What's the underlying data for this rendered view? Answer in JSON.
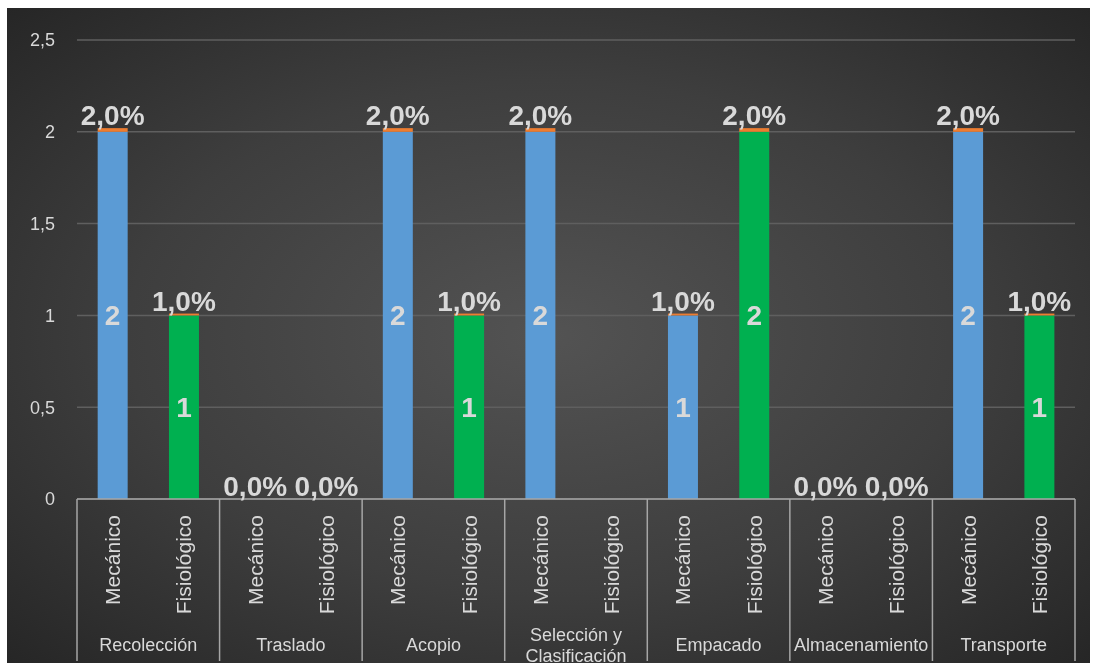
{
  "chart_data": {
    "type": "bar",
    "stacked": true,
    "categories": [
      "Mecánico",
      "Fisiológico",
      "Mecánico",
      "Fisiológico",
      "Mecánico",
      "Fisiológico",
      "Mecánico",
      "Fisiológico",
      "Mecánico",
      "Fisiológico",
      "Mecánico",
      "Fisiológico",
      "Mecánico",
      "Fisiológico"
    ],
    "series": [
      {
        "colors": [
          "#5b9bd5",
          "#00b050",
          "#5b9bd5",
          "#00b050",
          "#5b9bd5",
          "#00b050",
          "#5b9bd5",
          "#00b050",
          "#5b9bd5",
          "#00b050",
          "#5b9bd5",
          "#00b050",
          "#5b9bd5",
          "#00b050"
        ],
        "values": [
          2,
          1,
          null,
          null,
          2,
          1,
          2,
          null,
          1,
          2,
          null,
          null,
          2,
          1
        ],
        "value_labels": [
          "2",
          "1",
          null,
          null,
          "2",
          "1",
          "2",
          null,
          "1",
          "2",
          null,
          null,
          "2",
          "1"
        ]
      },
      {
        "color": "#ed7d31",
        "values": [
          0.02,
          0.01,
          0,
          0,
          0.02,
          0.01,
          0.02,
          null,
          0.01,
          0.02,
          0,
          0,
          0.02,
          0.01
        ],
        "value_labels": [
          "2,0%",
          "1,0%",
          "0,0%",
          "0,0%",
          "2,0%",
          "1,0%",
          "2,0%",
          null,
          "1,0%",
          "2,0%",
          "0,0%",
          "0,0%",
          "2,0%",
          "1,0%"
        ]
      }
    ],
    "ylim": [
      0,
      2.5
    ],
    "yticks": [
      0,
      {
        "value": 0.5,
        "label": "0,5"
      },
      1,
      {
        "value": 1.5,
        "label": "1,5"
      },
      2,
      {
        "value": 2.5,
        "label": "2,5"
      }
    ],
    "grid": "y",
    "annotations": [
      "Recolección",
      "Traslado",
      "Acopio",
      "Selección y Clasificación",
      "Empacado",
      "Almacenamiento",
      "Transporte"
    ]
  }
}
